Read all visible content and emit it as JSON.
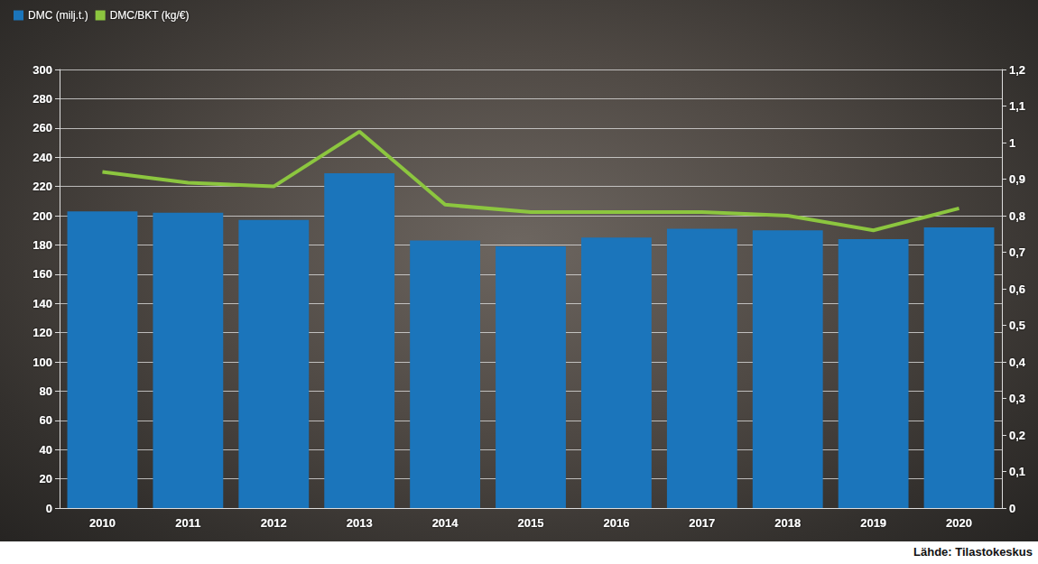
{
  "chart_data": {
    "type": "bar",
    "source": "Lähde: Tilastokeskus",
    "categories": [
      "2010",
      "2011",
      "2012",
      "2013",
      "2014",
      "2015",
      "2016",
      "2017",
      "2018",
      "2019",
      "2020"
    ],
    "series": [
      {
        "name": "DMC (milj.t.)",
        "type": "bar",
        "color": "#1b75bb",
        "values": [
          203,
          202,
          197,
          229,
          183,
          179,
          185,
          191,
          190,
          184,
          192
        ]
      },
      {
        "name": "DMC/BKT (kg/€)",
        "type": "line",
        "color": "#8cc63f",
        "axis": "y2",
        "marker": "none",
        "values": [
          0.92,
          0.89,
          0.88,
          1.03,
          0.83,
          0.81,
          0.81,
          0.81,
          0.8,
          0.76,
          0.82
        ]
      }
    ],
    "ylim": [
      0,
      300
    ],
    "yticks": [
      0,
      20,
      40,
      60,
      80,
      100,
      120,
      140,
      160,
      180,
      200,
      220,
      240,
      260,
      280,
      300
    ],
    "y2lim": [
      0,
      1.2
    ],
    "y2ticks": [
      0,
      {
        "value": 0.1,
        "label": "0,1"
      },
      {
        "value": 0.2,
        "label": "0,2"
      },
      {
        "value": 0.3,
        "label": "0,3"
      },
      {
        "value": 0.4,
        "label": "0,4"
      },
      {
        "value": 0.5,
        "label": "0,5"
      },
      {
        "value": 0.6,
        "label": "0,6"
      },
      {
        "value": 0.7,
        "label": "0,7"
      },
      {
        "value": 0.8,
        "label": "0,8"
      },
      {
        "value": 0.9,
        "label": "0,9"
      },
      1,
      {
        "value": 1.1,
        "label": "1,1"
      },
      {
        "value": 1.2,
        "label": "1,2"
      }
    ],
    "grid": true,
    "legend": "top-left"
  }
}
